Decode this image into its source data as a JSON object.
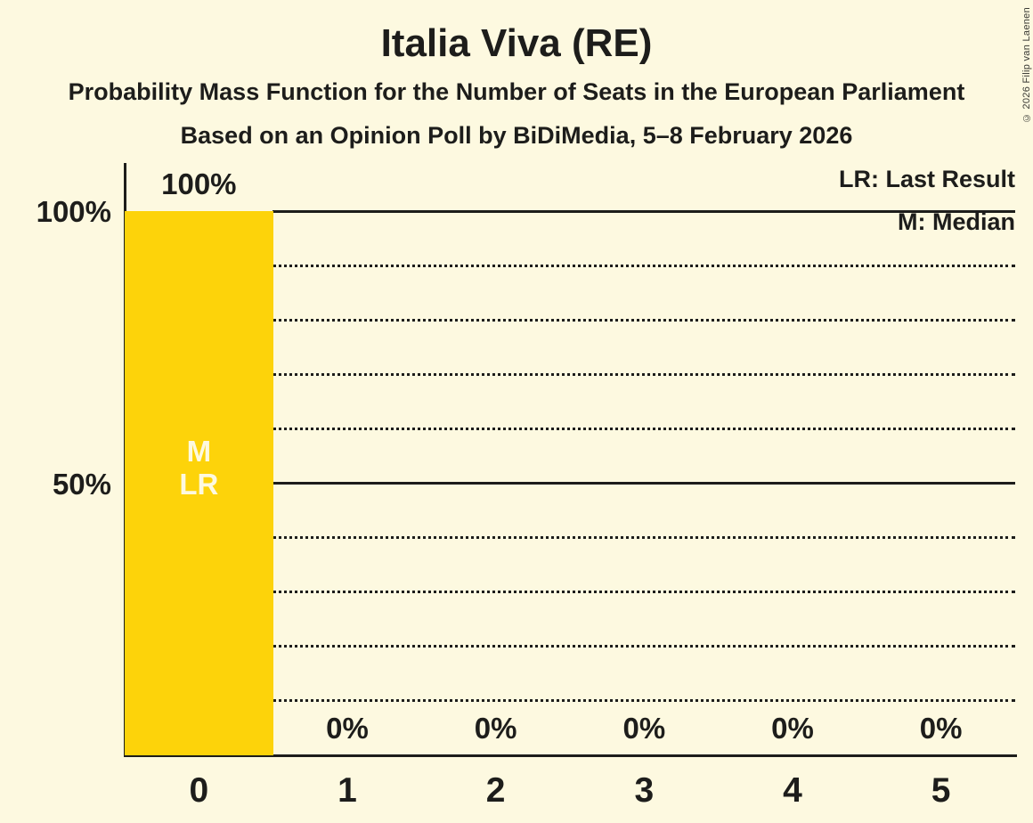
{
  "header": {
    "title": "Italia Viva (RE)",
    "subtitle_line1": "Probability Mass Function for the Number of Seats in the European Parliament",
    "subtitle_line2": "Based on an Opinion Poll by BiDiMedia, 5–8 February 2026",
    "copyright": "© 2026 Filip van Laenen"
  },
  "legend": {
    "last_result": "LR: Last Result",
    "median": "M: Median"
  },
  "y_axis": {
    "label_100": "100%",
    "label_50": "50%"
  },
  "chart_data": {
    "type": "bar",
    "title": "Italia Viva (RE)",
    "categories": [
      "0",
      "1",
      "2",
      "3",
      "4",
      "5"
    ],
    "values": [
      100,
      0,
      0,
      0,
      0,
      0
    ],
    "value_labels": [
      "100%",
      "0%",
      "0%",
      "0%",
      "0%",
      "0%"
    ],
    "ylim": [
      0,
      100
    ],
    "gridlines": {
      "solid_percent": [
        50,
        100
      ],
      "dotted_percent": [
        10,
        20,
        30,
        40,
        60,
        70,
        80,
        90
      ]
    },
    "bar_annotations": [
      {
        "category_index": 0,
        "lines": [
          "M",
          "LR"
        ]
      }
    ],
    "legend_position": "top-right",
    "grid": "horizontal-only"
  },
  "colors": {
    "background": "#FDF9E0",
    "bar": "#FDD30A",
    "text": "#1D1D1B",
    "bar_annotation_text": "#FDF9E0"
  }
}
